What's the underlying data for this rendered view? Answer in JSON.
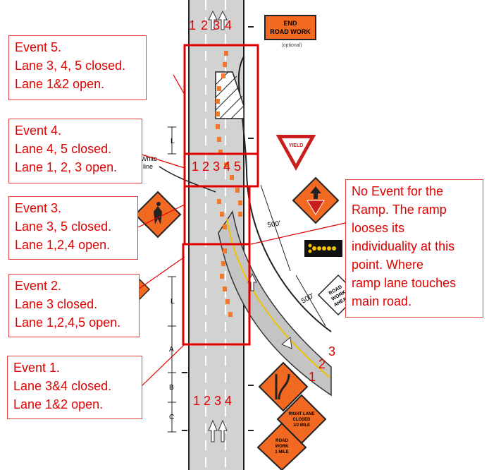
{
  "callouts": {
    "event5": {
      "title": "Event 5.",
      "line1": "Lane 3, 4, 5 closed.",
      "line2": "Lane 1&2  open."
    },
    "event4": {
      "title": "Event 4.",
      "line1": "Lane 4, 5 closed.",
      "line2": "Lane 1, 2, 3  open."
    },
    "event3": {
      "title": "Event 3.",
      "line1": "Lane 3, 5  closed.",
      "line2": "Lane 1,2,4 open."
    },
    "event2": {
      "title": "Event 2.",
      "line1": "Lane 3  closed.",
      "line2": "Lane 1,2,4,5 open."
    },
    "event1": {
      "title": "Event 1.",
      "line1": "Lane 3&4  closed.",
      "line2": "Lane 1&2 open."
    },
    "ramp_note": {
      "line1": "No Event for the",
      "line2": "Ramp. The ramp",
      "line3": "looses its",
      "line4": "individuality at this",
      "line5": "point.  Where",
      "line6": "ramp lane touches",
      "line7": "main road."
    }
  },
  "lane_numbers": {
    "top": "1 2 3 4",
    "middle": "1 2 3 4 5",
    "bottom": "1  2  3  4",
    "ramp": [
      "3",
      "2",
      "1"
    ]
  },
  "signs": {
    "end_road_work": {
      "line1": "END",
      "line2": "ROAD WORK",
      "caption": "(optional)"
    },
    "yield": "YIELD",
    "road_work_ahead": {
      "line1": "ROAD",
      "line2": "WORK",
      "line3": "AHEAD"
    },
    "right_lane_closed": {
      "line1": "RIGHT LANE",
      "line2": "CLOSED",
      "line3": "1/2 MILE"
    },
    "road_work_1_mile": {
      "line1": "ROAD",
      "line2": "WORK",
      "line3": "1 MILE"
    }
  },
  "labels": {
    "white_line": {
      "line1": "White",
      "line2": "line"
    },
    "distance_500_a": "500'",
    "distance_500_b": "500'",
    "dim_L_top": "L",
    "dim_L_bottom": "L",
    "dim_A": "A",
    "dim_B": "B",
    "dim_C": "C"
  },
  "colors": {
    "accent_red": "#e00000",
    "road_gray": "#cfcfcf",
    "drum_orange": "#f07a2a",
    "sign_orange": "#f26a21"
  }
}
